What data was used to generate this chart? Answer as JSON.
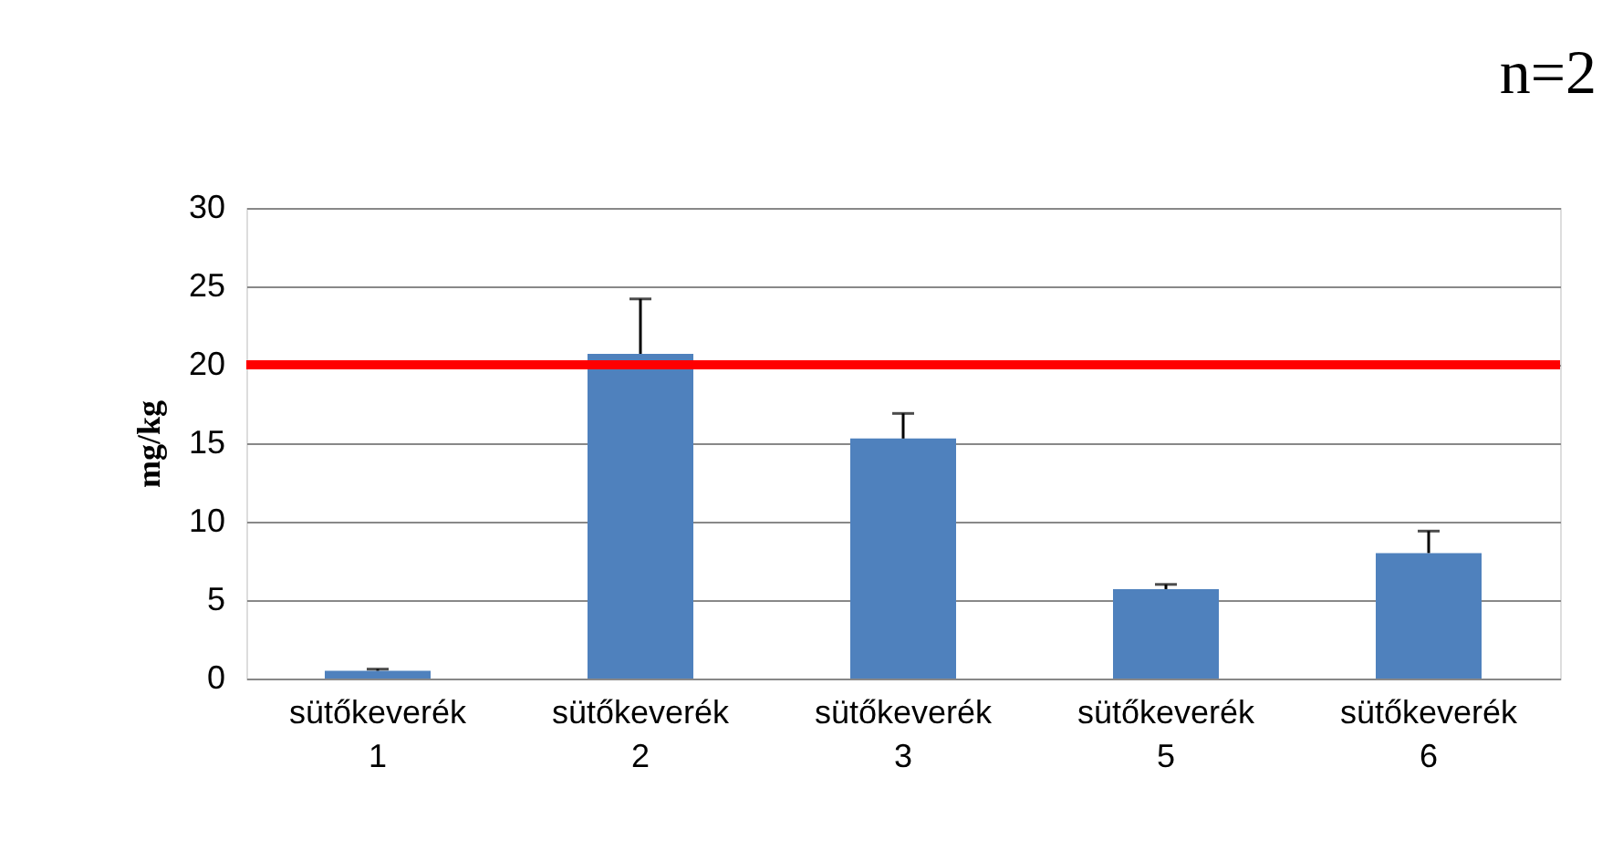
{
  "chart_data": {
    "type": "bar",
    "ylabel": "mg/kg",
    "categories": [
      "sütőkeverék 1",
      "sütőkeverék 2",
      "sütőkeverék 3",
      "sütőkeverék 5",
      "sütőkeverék 6"
    ],
    "values": [
      0.5,
      20.7,
      15.3,
      5.7,
      8.0
    ],
    "errors": [
      [
        0.5,
        0.6
      ],
      [
        20.7,
        24.2
      ],
      [
        15.3,
        16.9
      ],
      [
        5.7,
        6.0
      ],
      [
        8.0,
        9.4
      ]
    ],
    "color": "#4f81bd",
    "ylim": [
      0,
      30
    ],
    "yticks": [
      0,
      5,
      10,
      15,
      20,
      25,
      30
    ],
    "grid": "y",
    "ref_lines": [
      {
        "axis": "y",
        "value": 20,
        "color": "#ff0000"
      }
    ],
    "annotations": [
      "n=2"
    ]
  }
}
